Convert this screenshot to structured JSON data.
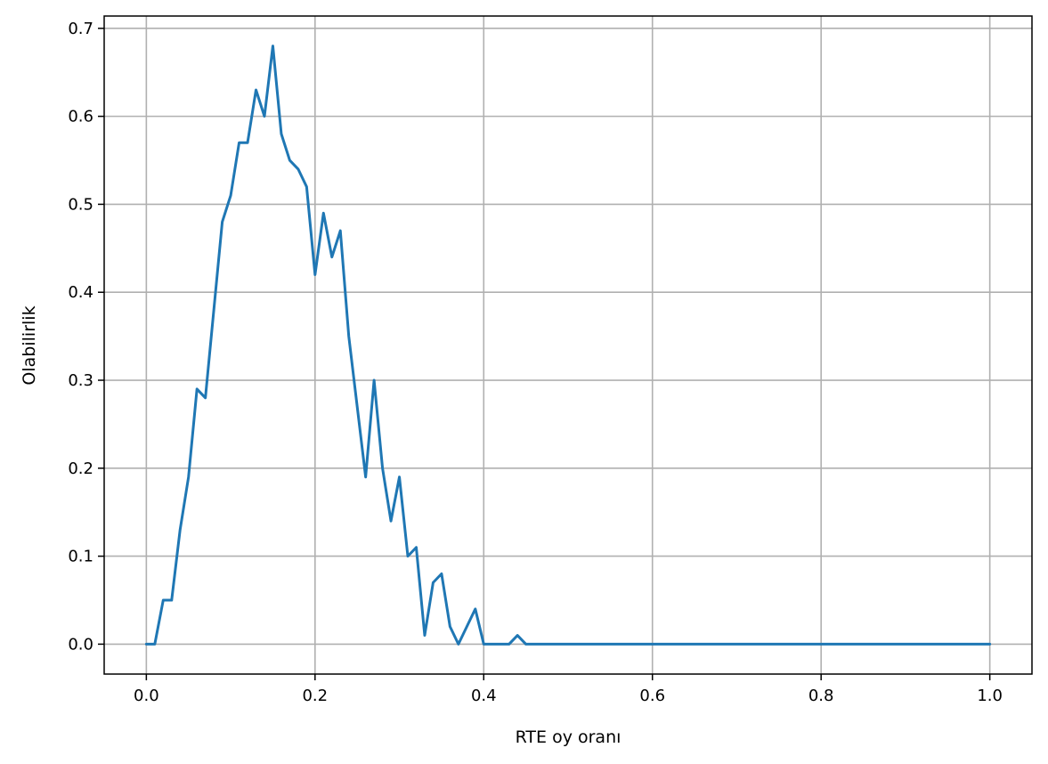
{
  "chart_data": {
    "type": "line",
    "title": "",
    "xlabel": "RTE oy oranı",
    "ylabel": "Olabilirlik",
    "xlim": [
      -0.05,
      1.05
    ],
    "ylim": [
      -0.034,
      0.714
    ],
    "xticks": [
      0.0,
      0.2,
      0.4,
      0.6,
      0.8,
      1.0
    ],
    "xtick_labels": [
      "0.0",
      "0.2",
      "0.4",
      "0.6",
      "0.8",
      "1.0"
    ],
    "yticks": [
      0.0,
      0.1,
      0.2,
      0.3,
      0.4,
      0.5,
      0.6,
      0.7
    ],
    "ytick_labels": [
      "0.0",
      "0.1",
      "0.2",
      "0.3",
      "0.4",
      "0.5",
      "0.6",
      "0.7"
    ],
    "grid": true,
    "line_color": "#1f77b4",
    "series": [
      {
        "x": [
          0.0,
          0.01,
          0.02,
          0.03,
          0.04,
          0.05,
          0.06,
          0.07,
          0.08,
          0.09,
          0.1,
          0.11,
          0.12,
          0.13,
          0.14,
          0.15,
          0.16,
          0.17,
          0.18,
          0.19,
          0.2,
          0.21,
          0.22,
          0.23,
          0.24,
          0.25,
          0.26,
          0.27,
          0.28,
          0.29,
          0.3,
          0.31,
          0.32,
          0.33,
          0.34,
          0.35,
          0.36,
          0.37,
          0.38,
          0.39,
          0.4,
          0.41,
          0.42,
          0.43,
          0.44,
          0.45,
          0.46,
          0.47,
          0.48,
          0.49,
          0.5,
          0.51,
          0.52,
          0.53,
          0.54,
          0.55,
          0.56,
          0.57,
          0.58,
          0.59,
          0.6,
          0.61,
          0.62,
          0.63,
          0.64,
          0.65,
          0.66,
          0.67,
          0.68,
          0.69,
          0.7,
          0.71,
          0.72,
          0.73,
          0.74,
          0.75,
          0.76,
          0.77,
          0.78,
          0.79,
          0.8,
          0.81,
          0.82,
          0.83,
          0.84,
          0.85,
          0.86,
          0.87,
          0.88,
          0.89,
          0.9,
          0.91,
          0.92,
          0.93,
          0.94,
          0.95,
          0.96,
          0.97,
          0.98,
          0.99,
          1.0
        ],
        "values": [
          0.0,
          0.0,
          0.05,
          0.05,
          0.13,
          0.19,
          0.29,
          0.28,
          0.38,
          0.48,
          0.51,
          0.57,
          0.57,
          0.63,
          0.6,
          0.68,
          0.58,
          0.55,
          0.54,
          0.52,
          0.42,
          0.49,
          0.44,
          0.47,
          0.35,
          0.27,
          0.19,
          0.3,
          0.2,
          0.14,
          0.19,
          0.1,
          0.11,
          0.01,
          0.07,
          0.08,
          0.02,
          0.0,
          0.02,
          0.04,
          0.0,
          0.0,
          0.0,
          0.0,
          0.01,
          0.0,
          0.0,
          0.0,
          0.0,
          0.0,
          0.0,
          0.0,
          0.0,
          0.0,
          0.0,
          0.0,
          0.0,
          0.0,
          0.0,
          0.0,
          0.0,
          0.0,
          0.0,
          0.0,
          0.0,
          0.0,
          0.0,
          0.0,
          0.0,
          0.0,
          0.0,
          0.0,
          0.0,
          0.0,
          0.0,
          0.0,
          0.0,
          0.0,
          0.0,
          0.0,
          0.0,
          0.0,
          0.0,
          0.0,
          0.0,
          0.0,
          0.0,
          0.0,
          0.0,
          0.0,
          0.0,
          0.0,
          0.0,
          0.0,
          0.0,
          0.0,
          0.0,
          0.0,
          0.0,
          0.0,
          0.0
        ]
      }
    ]
  }
}
